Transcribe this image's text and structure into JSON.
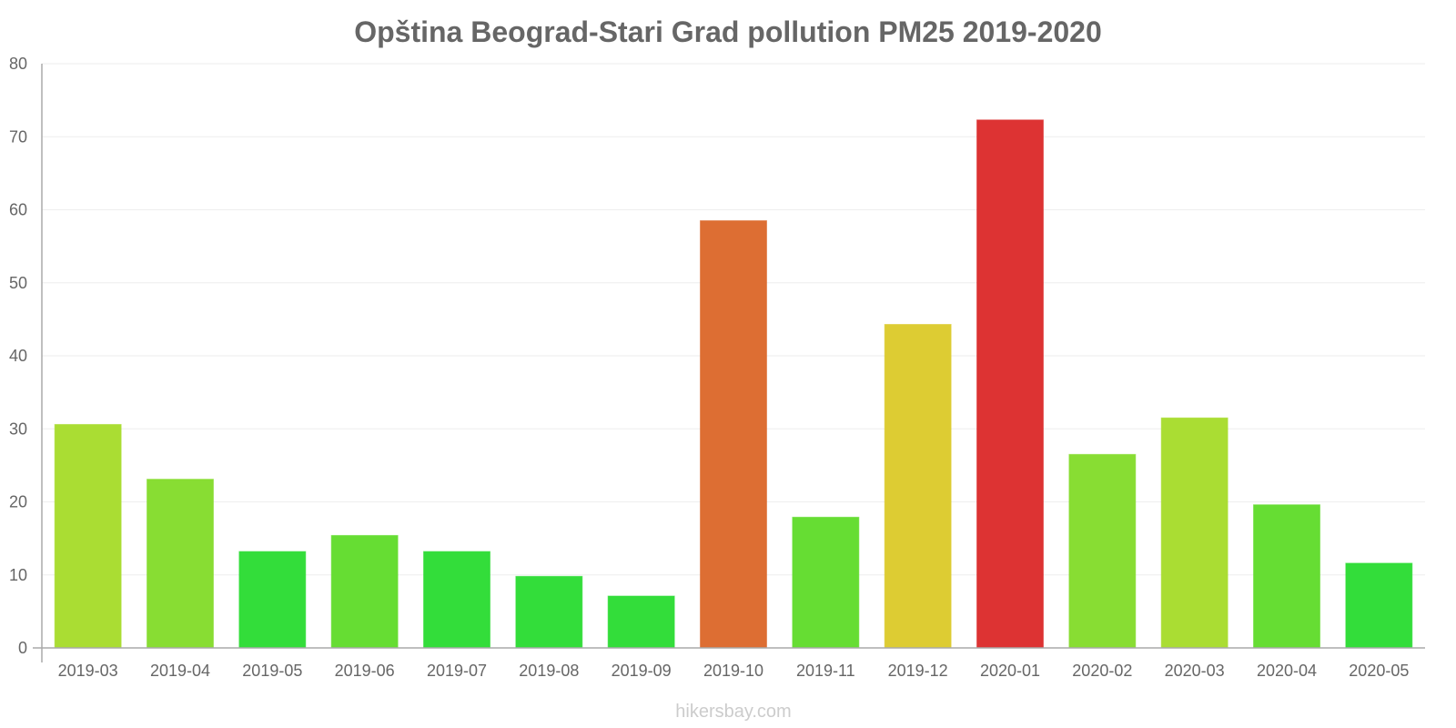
{
  "chart_data": {
    "type": "bar",
    "title": "Opština Beograd-Stari Grad pollution PM25 2019-2020",
    "xlabel": "",
    "ylabel": "",
    "ylim": [
      0,
      80
    ],
    "yticks": [
      0,
      10,
      20,
      30,
      40,
      50,
      60,
      70,
      80
    ],
    "categories": [
      "2019-03",
      "2019-04",
      "2019-05",
      "2019-06",
      "2019-07",
      "2019-08",
      "2019-09",
      "2019-10",
      "2019-11",
      "2019-12",
      "2020-01",
      "2020-02",
      "2020-03",
      "2020-04",
      "2020-05"
    ],
    "values": [
      30.6,
      23.1,
      13.2,
      15.4,
      13.2,
      9.8,
      7.1,
      58.5,
      17.9,
      44.3,
      72.3,
      26.5,
      31.5,
      19.6,
      11.6
    ],
    "colors": [
      "#aadd33",
      "#88dd33",
      "#33dd3a",
      "#66dd33",
      "#33dd3a",
      "#33dd3a",
      "#33dd3a",
      "#dd6e33",
      "#66dd33",
      "#ddcc33",
      "#dd3333",
      "#88dd33",
      "#aadd33",
      "#66dd33",
      "#33dd3a"
    ],
    "grid": true
  },
  "watermark": "hikersbay.com"
}
